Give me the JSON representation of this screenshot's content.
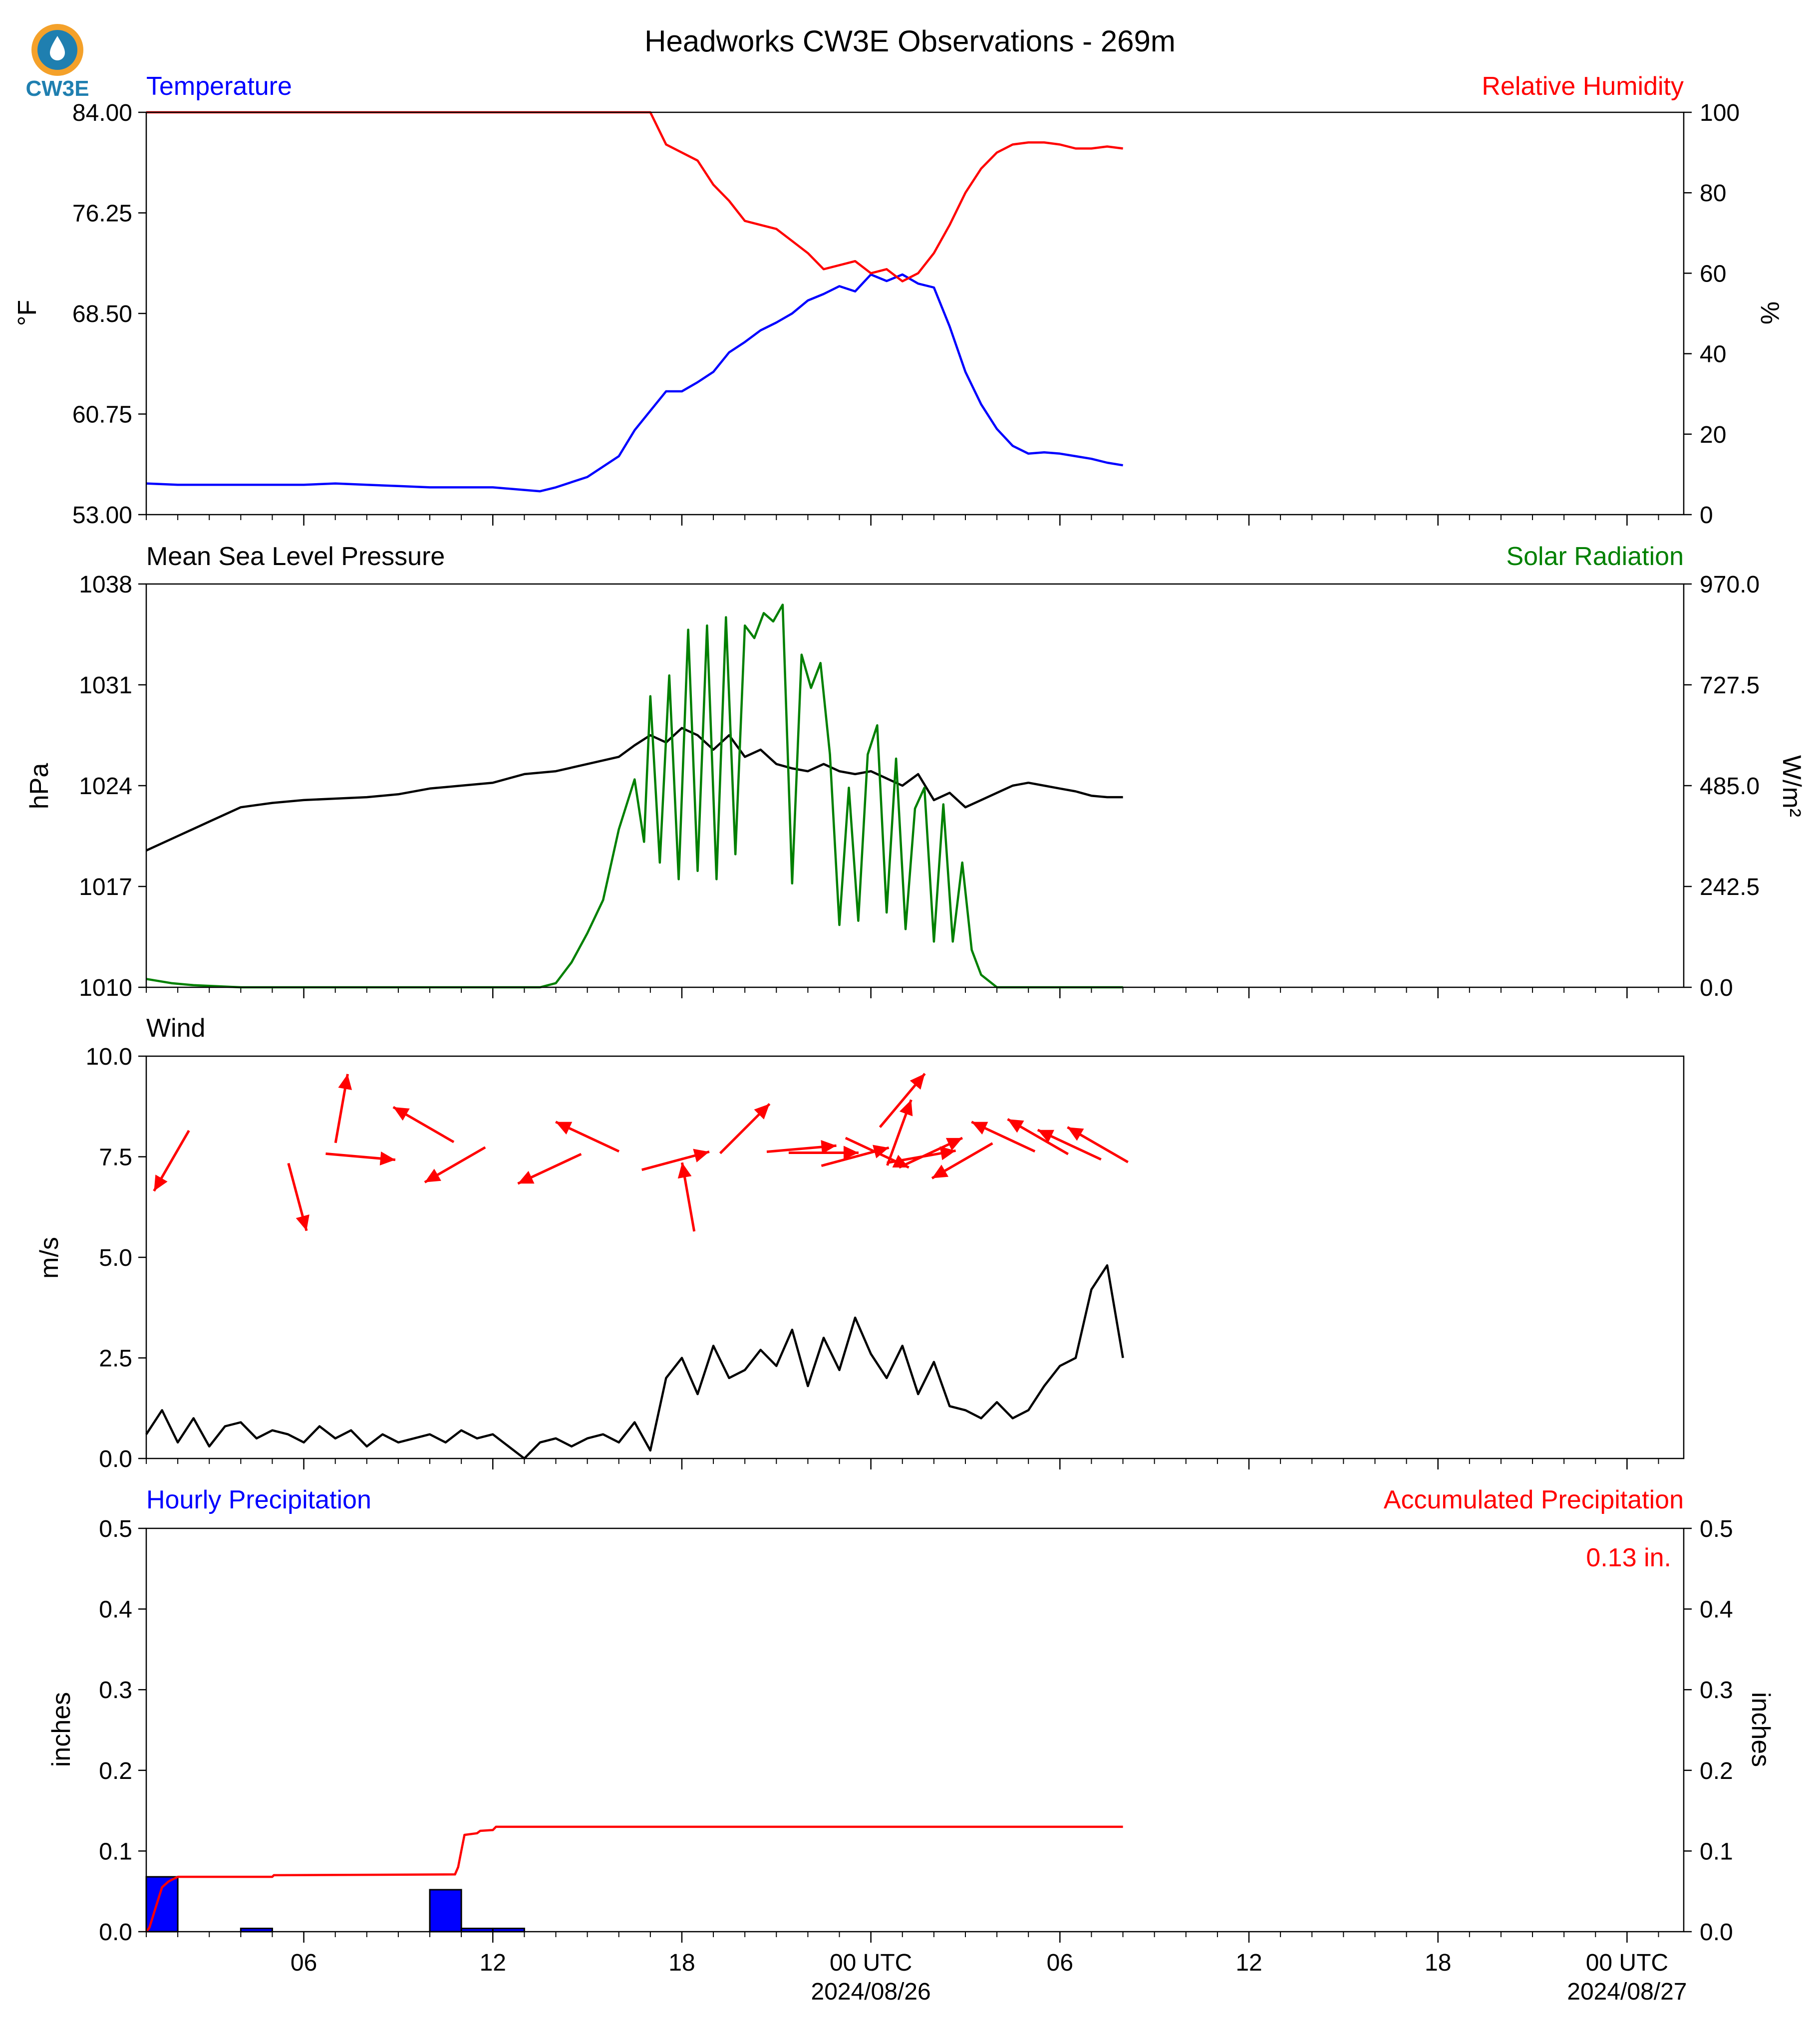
{
  "title": "Headworks CW3E Observations - 269m",
  "logo_text": "CW3E",
  "colors": {
    "temperature": "#0000ff",
    "humidity": "#ff0000",
    "pressure": "#000000",
    "solar": "#008000",
    "wind": "#000000",
    "arrows": "#ff0000",
    "hourly": "#0000ff",
    "accum": "#ff0000"
  },
  "time_axis": {
    "range_hours": [
      0,
      48.8
    ],
    "tick_labels": [
      {
        "hour": 5,
        "label": "06"
      },
      {
        "hour": 11,
        "label": "12"
      },
      {
        "hour": 17,
        "label": "18"
      },
      {
        "hour": 23,
        "label": "00 UTC",
        "sub": "2024/08/26"
      },
      {
        "hour": 29,
        "label": "06"
      },
      {
        "hour": 35,
        "label": "12"
      },
      {
        "hour": 41,
        "label": "18"
      },
      {
        "hour": 47,
        "label": "00 UTC",
        "sub": "2024/08/27"
      }
    ]
  },
  "chart_data": [
    {
      "type": "line",
      "panel": "temperature-humidity",
      "left_title": "Temperature",
      "right_title": "Relative Humidity",
      "ylabel": "°F",
      "y2label": "%",
      "ylim": [
        53.0,
        84.0
      ],
      "y2lim": [
        0,
        100
      ],
      "yticks": [
        "53.00",
        "60.75",
        "68.50",
        "76.25",
        "84.00"
      ],
      "y2ticks": [
        "0",
        "20",
        "40",
        "60",
        "80",
        "100"
      ],
      "series": [
        {
          "axis": "left",
          "x": [
            0,
            1,
            2,
            3,
            4,
            5,
            6,
            7,
            8,
            9,
            10,
            11,
            12,
            12.5,
            13,
            14,
            15,
            15.5,
            16,
            16.5,
            17,
            17.5,
            18,
            18.5,
            19,
            19.5,
            20,
            20.5,
            21,
            21.5,
            22,
            22.5,
            23,
            23.5,
            24,
            24.5,
            25,
            25.5,
            26,
            26.5,
            27,
            27.5,
            28,
            28.5,
            29,
            29.5,
            30,
            30.5,
            31
          ],
          "y": [
            55.4,
            55.3,
            55.3,
            55.3,
            55.3,
            55.3,
            55.4,
            55.3,
            55.2,
            55.1,
            55.1,
            55.1,
            54.9,
            54.8,
            55.1,
            55.9,
            57.5,
            59.5,
            61.0,
            62.5,
            62.5,
            63.2,
            64.0,
            65.5,
            66.3,
            67.2,
            67.8,
            68.5,
            69.5,
            70.0,
            70.6,
            70.2,
            71.5,
            71.0,
            71.5,
            70.8,
            70.5,
            67.5,
            64.0,
            61.5,
            59.6,
            58.3,
            57.7,
            57.8,
            57.7,
            57.5,
            57.3,
            57.0,
            56.8
          ]
        },
        {
          "axis": "right",
          "x": [
            0,
            1,
            2,
            3,
            4,
            5,
            6,
            7,
            8,
            9,
            10,
            11,
            12,
            13,
            14,
            14.5,
            15,
            15.5,
            16,
            16.5,
            17,
            17.5,
            18,
            18.5,
            19,
            19.5,
            20,
            20.5,
            21,
            21.5,
            22,
            22.5,
            23,
            23.5,
            24,
            24.5,
            25,
            25.5,
            26,
            26.5,
            27,
            27.5,
            28,
            28.5,
            29,
            29.5,
            30,
            30.5,
            31
          ],
          "y": [
            100,
            100,
            100,
            100,
            100,
            100,
            100,
            100,
            100,
            100,
            100,
            100,
            100,
            100,
            100,
            100,
            100,
            100,
            100,
            92,
            90,
            88,
            82,
            78,
            73,
            72,
            71,
            68,
            65,
            61,
            62,
            63,
            60,
            61,
            58,
            60,
            65,
            72,
            80,
            86,
            90,
            92,
            92.5,
            92.5,
            92,
            91,
            91,
            91.5,
            91
          ]
        }
      ]
    },
    {
      "type": "line",
      "panel": "pressure-solar",
      "left_title": "Mean Sea Level Pressure",
      "right_title": "Solar Radiation",
      "ylabel": "hPa",
      "y2label": "W/m²",
      "ylim": [
        1010,
        1038
      ],
      "y2lim": [
        0.0,
        970.0
      ],
      "yticks": [
        "1010",
        "1017",
        "1024",
        "1031",
        "1038"
      ],
      "y2ticks": [
        "0.0",
        "242.5",
        "485.0",
        "727.5",
        "970.0"
      ],
      "series": [
        {
          "axis": "left",
          "x": [
            0,
            1,
            2,
            3,
            4,
            5,
            6,
            7,
            8,
            9,
            10,
            11,
            12,
            13,
            14,
            15,
            15.5,
            16,
            16.5,
            17,
            17.5,
            18,
            18.5,
            19,
            19.5,
            20,
            20.5,
            21,
            21.5,
            22,
            22.5,
            23,
            23.5,
            24,
            24.5,
            25,
            25.5,
            26,
            26.5,
            27,
            27.5,
            28,
            28.5,
            29,
            29.5,
            30,
            30.5,
            31
          ],
          "y": [
            1019.5,
            1020.5,
            1021.5,
            1022.5,
            1022.8,
            1023.0,
            1023.1,
            1023.2,
            1023.4,
            1023.8,
            1024.0,
            1024.2,
            1024.8,
            1025.0,
            1025.5,
            1026.0,
            1026.8,
            1027.5,
            1027.0,
            1028.0,
            1027.5,
            1026.5,
            1027.5,
            1026.0,
            1026.5,
            1025.5,
            1025.2,
            1025.0,
            1025.5,
            1025.0,
            1024.8,
            1025.0,
            1024.5,
            1024.0,
            1024.8,
            1023.0,
            1023.5,
            1022.5,
            1023.0,
            1023.5,
            1024.0,
            1024.2,
            1024.0,
            1023.8,
            1023.6,
            1023.3,
            1023.2,
            1023.2
          ]
        },
        {
          "axis": "right",
          "x": [
            0,
            0.8,
            1.5,
            3,
            6,
            9,
            12,
            12.5,
            13,
            13.5,
            14,
            14.5,
            15,
            15.5,
            15.8,
            16,
            16.3,
            16.6,
            16.9,
            17.2,
            17.5,
            17.8,
            18.1,
            18.4,
            18.7,
            19,
            19.3,
            19.6,
            19.9,
            20.2,
            20.5,
            20.8,
            21.1,
            21.4,
            21.7,
            22,
            22.3,
            22.6,
            22.9,
            23.2,
            23.5,
            23.8,
            24.1,
            24.4,
            24.7,
            25,
            25.3,
            25.6,
            25.9,
            26.2,
            26.5,
            27,
            28,
            31
          ],
          "y": [
            20,
            10,
            5,
            0,
            0,
            0,
            0,
            0,
            10,
            60,
            130,
            210,
            380,
            500,
            350,
            700,
            300,
            750,
            260,
            860,
            280,
            870,
            260,
            890,
            320,
            870,
            840,
            900,
            880,
            920,
            250,
            800,
            720,
            780,
            560,
            150,
            480,
            160,
            560,
            630,
            180,
            550,
            140,
            430,
            480,
            110,
            440,
            110,
            300,
            90,
            30,
            0,
            0,
            0
          ]
        }
      ]
    },
    {
      "type": "line",
      "panel": "wind",
      "left_title": "Wind",
      "ylabel": "m/s",
      "ylim": [
        0.0,
        10.0
      ],
      "yticks": [
        "0.0",
        "2.5",
        "5.0",
        "7.5",
        "10.0"
      ],
      "series": [
        {
          "axis": "left",
          "x": [
            0,
            0.5,
            1,
            1.5,
            2,
            2.5,
            3,
            3.5,
            4,
            4.5,
            5,
            5.5,
            6,
            6.5,
            7,
            7.5,
            8,
            8.5,
            9,
            9.5,
            10,
            10.5,
            11,
            11.5,
            12,
            12.5,
            13,
            13.5,
            14,
            14.5,
            15,
            15.5,
            16,
            16.5,
            17,
            17.5,
            18,
            18.5,
            19,
            19.5,
            20,
            20.5,
            21,
            21.5,
            22,
            22.5,
            23,
            23.5,
            24,
            24.5,
            25,
            25.5,
            26,
            26.5,
            27,
            27.5,
            28,
            28.5,
            29,
            29.5,
            30,
            30.5,
            31
          ],
          "y": [
            0.6,
            1.2,
            0.4,
            1.0,
            0.3,
            0.8,
            0.9,
            0.5,
            0.7,
            0.6,
            0.4,
            0.8,
            0.5,
            0.7,
            0.3,
            0.6,
            0.4,
            0.5,
            0.6,
            0.4,
            0.7,
            0.5,
            0.6,
            0.3,
            0.0,
            0.4,
            0.5,
            0.3,
            0.5,
            0.6,
            0.4,
            0.9,
            0.2,
            2.0,
            2.5,
            1.6,
            2.8,
            2.0,
            2.2,
            2.7,
            2.3,
            3.2,
            1.8,
            3.0,
            2.2,
            3.5,
            2.6,
            2.0,
            2.8,
            1.6,
            2.4,
            1.3,
            1.2,
            1.0,
            1.4,
            1.0,
            1.2,
            1.8,
            2.3,
            2.5,
            4.2,
            4.8,
            2.5
          ]
        }
      ],
      "arrows": [
        {
          "x": 0.8,
          "speed": 7.4,
          "dir_deg": 30
        },
        {
          "x": 4.8,
          "speed": 6.5,
          "dir_deg": 345
        },
        {
          "x": 6.2,
          "speed": 8.7,
          "dir_deg": 190
        },
        {
          "x": 6.8,
          "speed": 7.5,
          "dir_deg": 275
        },
        {
          "x": 8.8,
          "speed": 8.3,
          "dir_deg": 120
        },
        {
          "x": 9.8,
          "speed": 7.3,
          "dir_deg": 60
        },
        {
          "x": 12.8,
          "speed": 7.2,
          "dir_deg": 65
        },
        {
          "x": 14.0,
          "speed": 8.0,
          "dir_deg": 115
        },
        {
          "x": 16.8,
          "speed": 7.4,
          "dir_deg": 255
        },
        {
          "x": 17.2,
          "speed": 6.5,
          "dir_deg": 170
        },
        {
          "x": 19.0,
          "speed": 8.2,
          "dir_deg": 225
        },
        {
          "x": 20.8,
          "speed": 7.7,
          "dir_deg": 265
        },
        {
          "x": 21.5,
          "speed": 7.6,
          "dir_deg": 270
        },
        {
          "x": 22.5,
          "speed": 7.5,
          "dir_deg": 255
        },
        {
          "x": 23.2,
          "speed": 7.6,
          "dir_deg": 295
        },
        {
          "x": 23.9,
          "speed": 8.1,
          "dir_deg": 200
        },
        {
          "x": 24.0,
          "speed": 8.9,
          "dir_deg": 220
        },
        {
          "x": 24.6,
          "speed": 7.5,
          "dir_deg": 260
        },
        {
          "x": 24.9,
          "speed": 7.6,
          "dir_deg": 245
        },
        {
          "x": 25.9,
          "speed": 7.4,
          "dir_deg": 60
        },
        {
          "x": 27.2,
          "speed": 8.0,
          "dir_deg": 115
        },
        {
          "x": 28.3,
          "speed": 8.0,
          "dir_deg": 120
        },
        {
          "x": 29.3,
          "speed": 7.8,
          "dir_deg": 115
        },
        {
          "x": 30.2,
          "speed": 7.8,
          "dir_deg": 120
        }
      ]
    },
    {
      "type": "bar",
      "panel": "precipitation",
      "left_title": "Hourly Precipitation",
      "right_title": "Accumulated Precipitation",
      "annotation": "0.13 in.",
      "ylabel": "inches",
      "y2label": "inches",
      "ylim": [
        0.0,
        0.5
      ],
      "y2lim": [
        0.0,
        0.5
      ],
      "yticks": [
        "0.0",
        "0.1",
        "0.2",
        "0.3",
        "0.4",
        "0.5"
      ],
      "y2ticks": [
        "0.0",
        "0.1",
        "0.2",
        "0.3",
        "0.4",
        "0.5"
      ],
      "bars": [
        {
          "x": 0,
          "value": 0.068
        },
        {
          "x": 3,
          "value": 0.004
        },
        {
          "x": 9,
          "value": 0.052
        },
        {
          "x": 10,
          "value": 0.004
        },
        {
          "x": 11,
          "value": 0.004
        }
      ],
      "series": [
        {
          "axis": "right",
          "x": [
            0,
            0.1,
            0.3,
            0.5,
            0.7,
            0.9,
            1.0,
            4.0,
            4.05,
            9.8,
            9.9,
            10.0,
            10.1,
            10.5,
            10.6,
            11.0,
            11.1,
            31
          ],
          "y": [
            0.0,
            0.005,
            0.03,
            0.055,
            0.062,
            0.066,
            0.068,
            0.068,
            0.07,
            0.071,
            0.08,
            0.1,
            0.12,
            0.122,
            0.125,
            0.126,
            0.13,
            0.13
          ]
        }
      ]
    }
  ]
}
